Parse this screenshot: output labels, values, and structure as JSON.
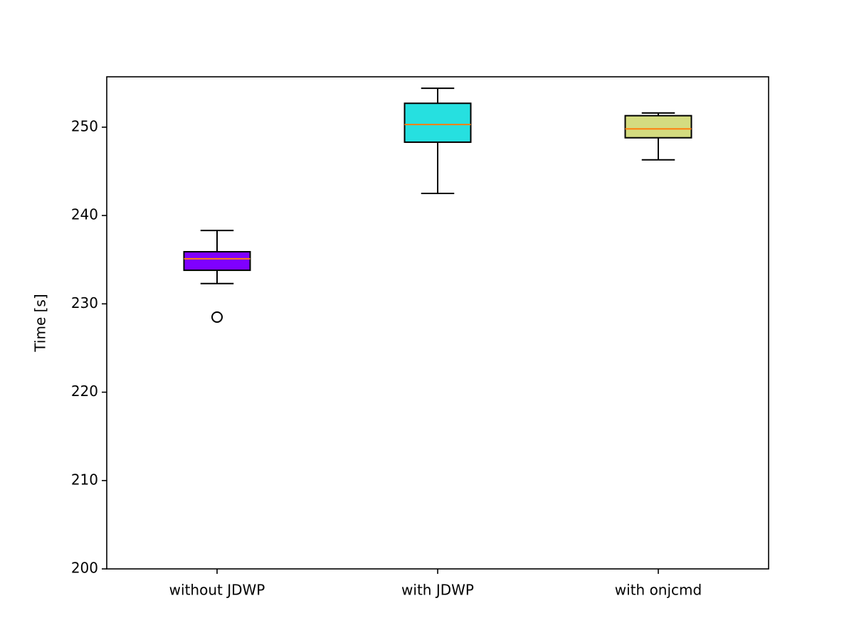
{
  "chart_data": {
    "type": "box",
    "y_label": "Time [s]",
    "categories": [
      "without JDWP",
      "with JDWP",
      "with onjcmd"
    ],
    "boxes": [
      {
        "whisker_low": 232.3,
        "q1": 233.8,
        "median": 235.1,
        "q3": 235.9,
        "whisker_high": 238.3,
        "outliers": [
          228.5
        ],
        "color": "#7f00ff"
      },
      {
        "whisker_low": 242.5,
        "q1": 248.3,
        "median": 250.3,
        "q3": 252.7,
        "whisker_high": 254.4,
        "outliers": [],
        "color": "#26e0e0"
      },
      {
        "whisker_low": 246.3,
        "q1": 248.8,
        "median": 249.8,
        "q3": 251.3,
        "whisker_high": 251.6,
        "outliers": [],
        "color": "#d4dc80"
      }
    ],
    "median_color": "#ff7f0e",
    "ylim": [
      200,
      255.7
    ],
    "yticks": [
      200,
      210,
      220,
      230,
      240,
      250
    ]
  }
}
